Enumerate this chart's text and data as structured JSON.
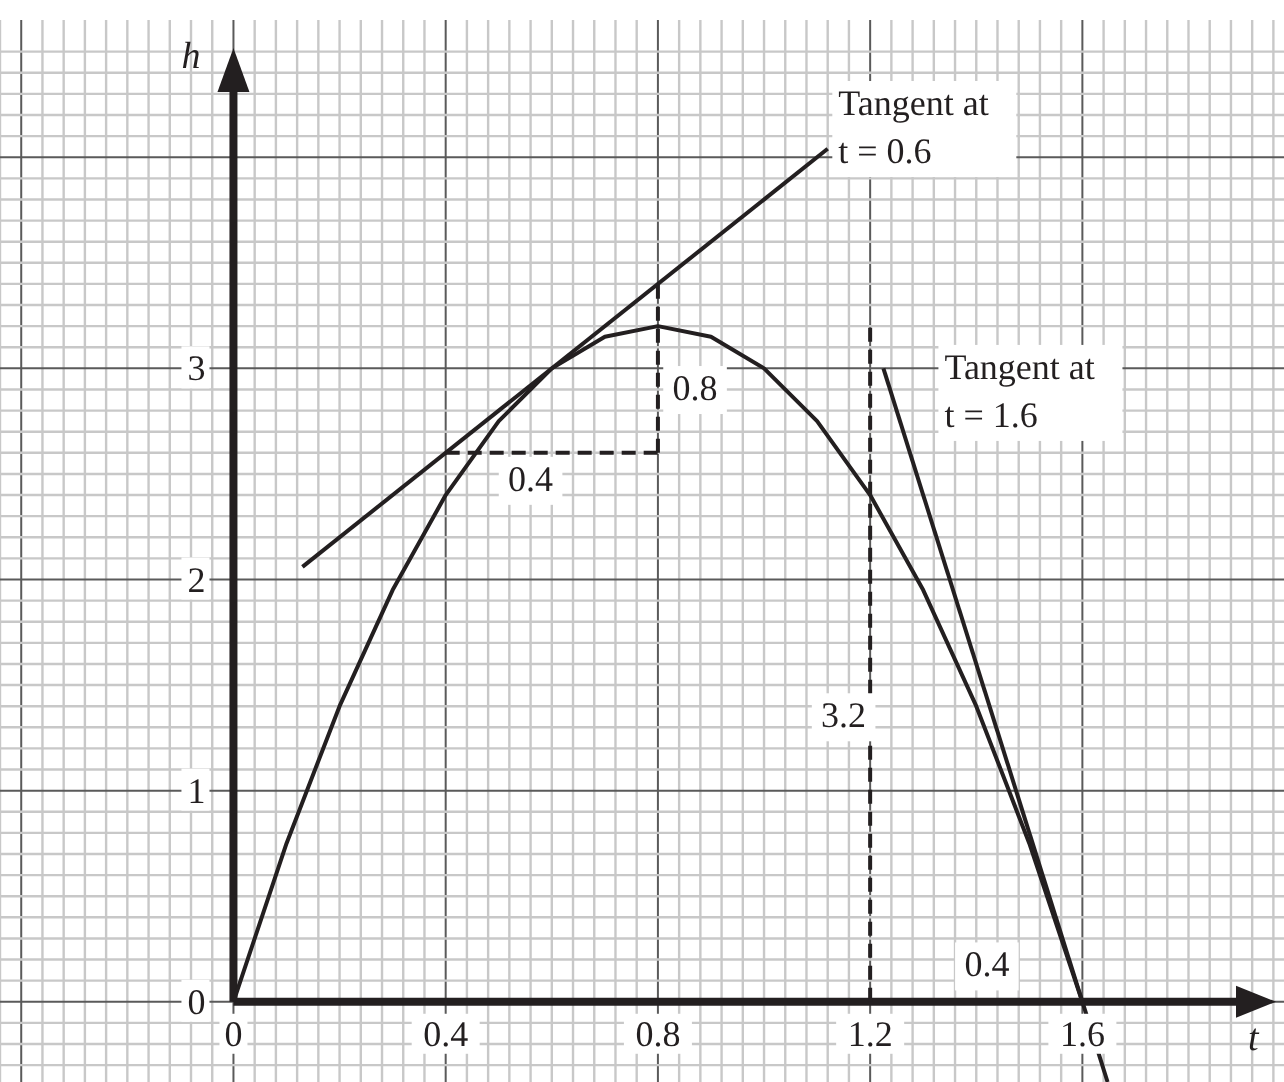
{
  "chart_data": {
    "type": "line",
    "xlabel": "t",
    "ylabel": "h",
    "xlim": [
      -0.44,
      1.98
    ],
    "ylim": [
      -0.38,
      4.65
    ],
    "xticks": [
      {
        "value": -0.44,
        "label": null
      },
      {
        "value": -0.4,
        "label": null
      },
      {
        "value": -0.36,
        "label": null
      },
      {
        "value": -0.32,
        "label": null
      },
      {
        "value": -0.28,
        "label": null
      },
      {
        "value": -0.24,
        "label": null
      },
      {
        "value": -0.2,
        "label": null
      },
      {
        "value": -0.16,
        "label": null
      },
      {
        "value": -0.12,
        "label": null
      },
      {
        "value": -0.08,
        "label": null
      },
      {
        "value": -0.04,
        "label": null
      },
      0,
      {
        "value": 0.04,
        "label": null
      },
      {
        "value": 0.08,
        "label": null
      },
      {
        "value": 0.12,
        "label": null
      },
      {
        "value": 0.16,
        "label": null
      },
      {
        "value": 0.2,
        "label": null
      },
      {
        "value": 0.24,
        "label": null
      },
      {
        "value": 0.28,
        "label": null
      },
      {
        "value": 0.32,
        "label": null
      },
      {
        "value": 0.36,
        "label": null
      },
      0.4,
      {
        "value": 0.44,
        "label": null
      },
      {
        "value": 0.48,
        "label": null
      },
      {
        "value": 0.52,
        "label": null
      },
      {
        "value": 0.56,
        "label": null
      },
      {
        "value": 0.6,
        "label": null
      },
      {
        "value": 0.64,
        "label": null
      },
      {
        "value": 0.68,
        "label": null
      },
      {
        "value": 0.72,
        "label": null
      },
      {
        "value": 0.76,
        "label": null
      },
      0.8,
      {
        "value": 0.84,
        "label": null
      },
      {
        "value": 0.88,
        "label": null
      },
      {
        "value": 0.92,
        "label": null
      },
      {
        "value": 0.96,
        "label": null
      },
      {
        "value": 1.0,
        "label": null
      },
      {
        "value": 1.04,
        "label": null
      },
      {
        "value": 1.08,
        "label": null
      },
      {
        "value": 1.12,
        "label": null
      },
      {
        "value": 1.16,
        "label": null
      },
      1.2,
      {
        "value": 1.24,
        "label": null
      },
      {
        "value": 1.28,
        "label": null
      },
      {
        "value": 1.32,
        "label": null
      },
      {
        "value": 1.36,
        "label": null
      },
      {
        "value": 1.4,
        "label": null
      },
      {
        "value": 1.44,
        "label": null
      },
      {
        "value": 1.48,
        "label": null
      },
      {
        "value": 1.52,
        "label": null
      },
      {
        "value": 1.56,
        "label": null
      },
      1.6,
      {
        "value": 1.64,
        "label": null
      },
      {
        "value": 1.68,
        "label": null
      },
      {
        "value": 1.72,
        "label": null
      },
      {
        "value": 1.76,
        "label": null
      },
      {
        "value": 1.8,
        "label": null
      },
      {
        "value": 1.84,
        "label": null
      },
      {
        "value": 1.88,
        "label": null
      },
      {
        "value": 1.92,
        "label": null
      },
      {
        "value": 1.96,
        "label": null
      }
    ],
    "yticks": [
      {
        "value": -0.3,
        "label": null
      },
      {
        "value": -0.2,
        "label": null
      },
      {
        "value": -0.1,
        "label": null
      },
      0,
      {
        "value": 0.1,
        "label": null
      },
      {
        "value": 0.2,
        "label": null
      },
      {
        "value": 0.3,
        "label": null
      },
      {
        "value": 0.4,
        "label": null
      },
      {
        "value": 0.5,
        "label": null
      },
      {
        "value": 0.6,
        "label": null
      },
      {
        "value": 0.7,
        "label": null
      },
      {
        "value": 0.8,
        "label": null
      },
      {
        "value": 0.9,
        "label": null
      },
      1,
      {
        "value": 1.1,
        "label": null
      },
      {
        "value": 1.2,
        "label": null
      },
      {
        "value": 1.3,
        "label": null
      },
      {
        "value": 1.4,
        "label": null
      },
      {
        "value": 1.5,
        "label": null
      },
      {
        "value": 1.6,
        "label": null
      },
      {
        "value": 1.7,
        "label": null
      },
      {
        "value": 1.8,
        "label": null
      },
      {
        "value": 1.9,
        "label": null
      },
      2,
      {
        "value": 2.1,
        "label": null
      },
      {
        "value": 2.2,
        "label": null
      },
      {
        "value": 2.3,
        "label": null
      },
      {
        "value": 2.4,
        "label": null
      },
      {
        "value": 2.5,
        "label": null
      },
      {
        "value": 2.6,
        "label": null
      },
      {
        "value": 2.7,
        "label": null
      },
      {
        "value": 2.8,
        "label": null
      },
      {
        "value": 2.9,
        "label": null
      },
      3,
      {
        "value": 3.1,
        "label": null
      },
      {
        "value": 3.2,
        "label": null
      },
      {
        "value": 3.3,
        "label": null
      },
      {
        "value": 3.4,
        "label": null
      },
      {
        "value": 3.5,
        "label": null
      },
      {
        "value": 3.6,
        "label": null
      },
      {
        "value": 3.7,
        "label": null
      },
      {
        "value": 3.8,
        "label": null
      },
      {
        "value": 3.9,
        "label": null
      },
      {
        "value": 4,
        "label": null
      },
      {
        "value": 4.1,
        "label": null
      },
      {
        "value": 4.2,
        "label": null
      },
      {
        "value": 4.3,
        "label": null
      },
      {
        "value": 4.4,
        "label": null
      },
      {
        "value": 4.5,
        "label": null
      }
    ],
    "grid": true,
    "marker": "none",
    "series": [
      {
        "color": "#231f20",
        "line_style": "solid",
        "x": [
          0,
          0.1,
          0.2,
          0.3,
          0.4,
          0.5,
          0.6,
          0.7,
          0.8,
          0.9,
          1.0,
          1.1,
          1.2,
          1.3,
          1.4,
          1.5,
          1.6
        ],
        "values": [
          0,
          0.75,
          1.4,
          1.95,
          2.4,
          2.75,
          3.0,
          3.15,
          3.2,
          3.15,
          3.0,
          2.75,
          2.4,
          1.95,
          1.4,
          0.75,
          0
        ]
      },
      {
        "color": "#231f20",
        "line_style": "solid",
        "x": [
          0.13,
          1.12
        ],
        "values": [
          2.06,
          4.04
        ]
      },
      {
        "color": "#231f20",
        "line_style": "solid",
        "x": [
          1.225,
          1.6475
        ],
        "values": [
          3.0,
          -0.38
        ]
      },
      {
        "color": "#231f20",
        "line_style": "dashed",
        "x": [
          0.4,
          0.8
        ],
        "values": [
          2.6,
          2.6
        ]
      },
      {
        "color": "#231f20",
        "line_style": "dashed",
        "x": [
          0.8,
          0.8
        ],
        "values": [
          2.6,
          3.4
        ]
      },
      {
        "color": "#231f20",
        "line_style": "dashed",
        "x": [
          1.2,
          1.2
        ],
        "values": [
          0,
          3.2
        ]
      }
    ],
    "annotations": [
      "Tangent at\nt = 0.6",
      "Tangent at\nt = 1.6",
      "0.4",
      "0.8",
      "3.2",
      "0.4"
    ]
  }
}
